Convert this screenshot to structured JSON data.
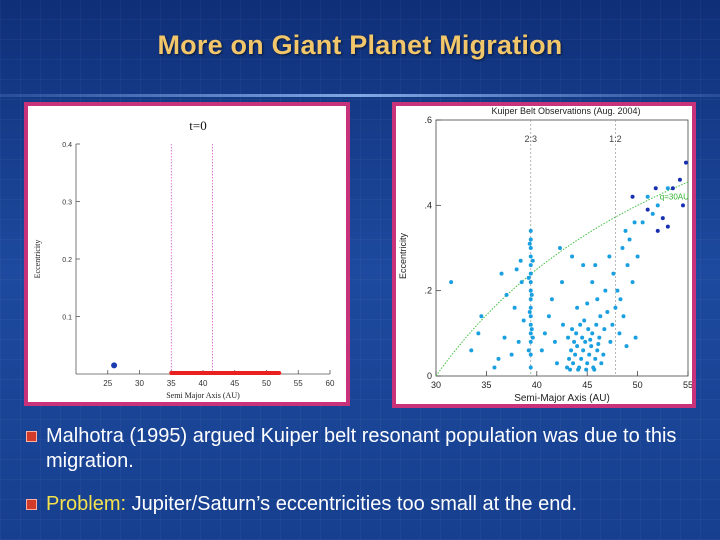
{
  "slide": {
    "title": "More on Giant Planet Migration",
    "bullets": [
      {
        "text": "Malhotra (1995) argued Kuiper belt resonant population was due to this migration."
      },
      {
        "highlight": "Problem:",
        "text": " Jupiter/Saturn’s eccentricities too small at the end."
      }
    ]
  },
  "colors": {
    "title": "#f2c66a",
    "frame": "#c8327a",
    "bullet_marker": "#d23a2a",
    "highlight": "#f5e24a"
  },
  "chart_data": [
    {
      "type": "scatter",
      "title": "t=0",
      "xlabel": "Semi Major Axis (AU)",
      "ylabel": "Eccentricity",
      "xlim": [
        20,
        60
      ],
      "ylim": [
        0,
        0.4
      ],
      "x_ticks": [
        "25",
        "30",
        "35",
        "40",
        "45",
        "50",
        "55",
        "60"
      ],
      "y_ticks": [
        "0.1",
        "0.2",
        "0.3",
        "0.4"
      ],
      "vlines": [
        35,
        41.5
      ],
      "points": [
        {
          "x": 26,
          "y": 0.015,
          "color": "#1a3ab0"
        }
      ],
      "belt_segment": {
        "x": [
          35,
          52
        ],
        "y": 0,
        "color": "#e82020"
      }
    },
    {
      "type": "scatter",
      "title": "Kuiper Belt Observations (Aug. 2004)",
      "xlabel": "Semi-Major Axis (AU)",
      "ylabel": "Eccentricity",
      "xlim": [
        30,
        55
      ],
      "ylim": [
        0,
        0.6
      ],
      "x_ticks": [
        "30",
        "35",
        "40",
        "45",
        "50",
        "55"
      ],
      "y_ticks": [
        "0",
        ".2",
        ".4",
        ".6"
      ],
      "vlines": [
        39.4,
        47.8
      ],
      "vline_labels": [
        "2:3",
        "1:2"
      ],
      "curve_label": "q=30AU",
      "series": [
        {
          "color": "#1aa0e0",
          "points": [
            [
              39.4,
              0.02
            ],
            [
              39.4,
              0.05
            ],
            [
              39.4,
              0.08
            ],
            [
              39.4,
              0.1
            ],
            [
              39.4,
              0.12
            ],
            [
              39.4,
              0.14
            ],
            [
              39.4,
              0.16
            ],
            [
              39.4,
              0.18
            ],
            [
              39.4,
              0.2
            ],
            [
              39.4,
              0.22
            ],
            [
              39.4,
              0.24
            ],
            [
              39.4,
              0.26
            ],
            [
              39.4,
              0.28
            ],
            [
              39.4,
              0.3
            ],
            [
              39.4,
              0.32
            ],
            [
              39.4,
              0.34
            ],
            [
              39.2,
              0.06
            ],
            [
              39.6,
              0.09
            ],
            [
              39.3,
              0.15
            ],
            [
              39.5,
              0.19
            ],
            [
              39.2,
              0.23
            ],
            [
              39.6,
              0.27
            ],
            [
              39.3,
              0.31
            ],
            [
              39.5,
              0.11
            ],
            [
              38.0,
              0.25
            ],
            [
              38.5,
              0.22
            ],
            [
              37.8,
              0.16
            ],
            [
              38.7,
              0.13
            ],
            [
              38.2,
              0.08
            ],
            [
              37.5,
              0.05
            ],
            [
              36.2,
              0.04
            ],
            [
              36.8,
              0.09
            ],
            [
              35.8,
              0.02
            ],
            [
              34.5,
              0.14
            ],
            [
              36.5,
              0.24
            ],
            [
              37.0,
              0.19
            ],
            [
              38.4,
              0.27
            ],
            [
              40.5,
              0.06
            ],
            [
              40.8,
              0.1
            ],
            [
              41.2,
              0.14
            ],
            [
              41.8,
              0.08
            ],
            [
              42.0,
              0.03
            ],
            [
              41.5,
              0.18
            ],
            [
              42.5,
              0.22
            ],
            [
              42.6,
              0.12
            ],
            [
              43.0,
              0.02
            ],
            [
              43.2,
              0.04
            ],
            [
              43.4,
              0.06
            ],
            [
              43.6,
              0.03
            ],
            [
              43.8,
              0.05
            ],
            [
              44.0,
              0.07
            ],
            [
              44.2,
              0.02
            ],
            [
              44.4,
              0.04
            ],
            [
              44.6,
              0.06
            ],
            [
              44.8,
              0.08
            ],
            [
              45.0,
              0.03
            ],
            [
              45.2,
              0.05
            ],
            [
              45.4,
              0.07
            ],
            [
              45.6,
              0.02
            ],
            [
              45.8,
              0.04
            ],
            [
              46.0,
              0.06
            ],
            [
              46.2,
              0.09
            ],
            [
              46.4,
              0.03
            ],
            [
              46.6,
              0.05
            ],
            [
              43.1,
              0.09
            ],
            [
              43.5,
              0.11
            ],
            [
              43.9,
              0.1
            ],
            [
              44.3,
              0.12
            ],
            [
              44.7,
              0.13
            ],
            [
              45.1,
              0.11
            ],
            [
              45.5,
              0.1
            ],
            [
              45.9,
              0.12
            ],
            [
              46.3,
              0.14
            ],
            [
              46.7,
              0.11
            ],
            [
              43.3,
              0.015
            ],
            [
              44.1,
              0.015
            ],
            [
              44.9,
              0.015
            ],
            [
              45.7,
              0.015
            ],
            [
              43.7,
              0.08
            ],
            [
              44.5,
              0.09
            ],
            [
              45.3,
              0.085
            ],
            [
              46.1,
              0.075
            ],
            [
              44.0,
              0.16
            ],
            [
              45.0,
              0.17
            ],
            [
              46.0,
              0.18
            ],
            [
              47.0,
              0.15
            ],
            [
              47.5,
              0.12
            ],
            [
              47.8,
              0.16
            ],
            [
              48.0,
              0.2
            ],
            [
              47.6,
              0.24
            ],
            [
              48.3,
              0.18
            ],
            [
              48.6,
              0.14
            ],
            [
              48.2,
              0.1
            ],
            [
              46.8,
              0.2
            ],
            [
              45.5,
              0.22
            ],
            [
              44.6,
              0.26
            ],
            [
              47.2,
              0.28
            ],
            [
              48.5,
              0.3
            ],
            [
              49.0,
              0.26
            ],
            [
              49.5,
              0.22
            ],
            [
              49.2,
              0.32
            ],
            [
              50.0,
              0.28
            ],
            [
              50.5,
              0.36
            ],
            [
              42.3,
              0.3
            ],
            [
              43.5,
              0.28
            ],
            [
              45.8,
              0.26
            ],
            [
              48.8,
              0.34
            ],
            [
              49.7,
              0.36
            ],
            [
              51.0,
              0.42
            ],
            [
              52.0,
              0.4
            ],
            [
              53.0,
              0.44
            ],
            [
              51.5,
              0.38
            ],
            [
              31.5,
              0.22
            ],
            [
              33.5,
              0.06
            ],
            [
              34.2,
              0.1
            ],
            [
              47.3,
              0.08
            ],
            [
              48.9,
              0.07
            ],
            [
              49.8,
              0.09
            ]
          ]
        },
        {
          "color": "#1830b0",
          "points": [
            [
              49.5,
              0.42
            ],
            [
              51.0,
              0.39
            ],
            [
              52.5,
              0.37
            ],
            [
              53.5,
              0.44
            ],
            [
              54.2,
              0.46
            ],
            [
              53.0,
              0.35
            ],
            [
              54.5,
              0.4
            ],
            [
              52.0,
              0.34
            ],
            [
              54.8,
              0.5
            ],
            [
              51.8,
              0.44
            ]
          ]
        }
      ]
    }
  ]
}
